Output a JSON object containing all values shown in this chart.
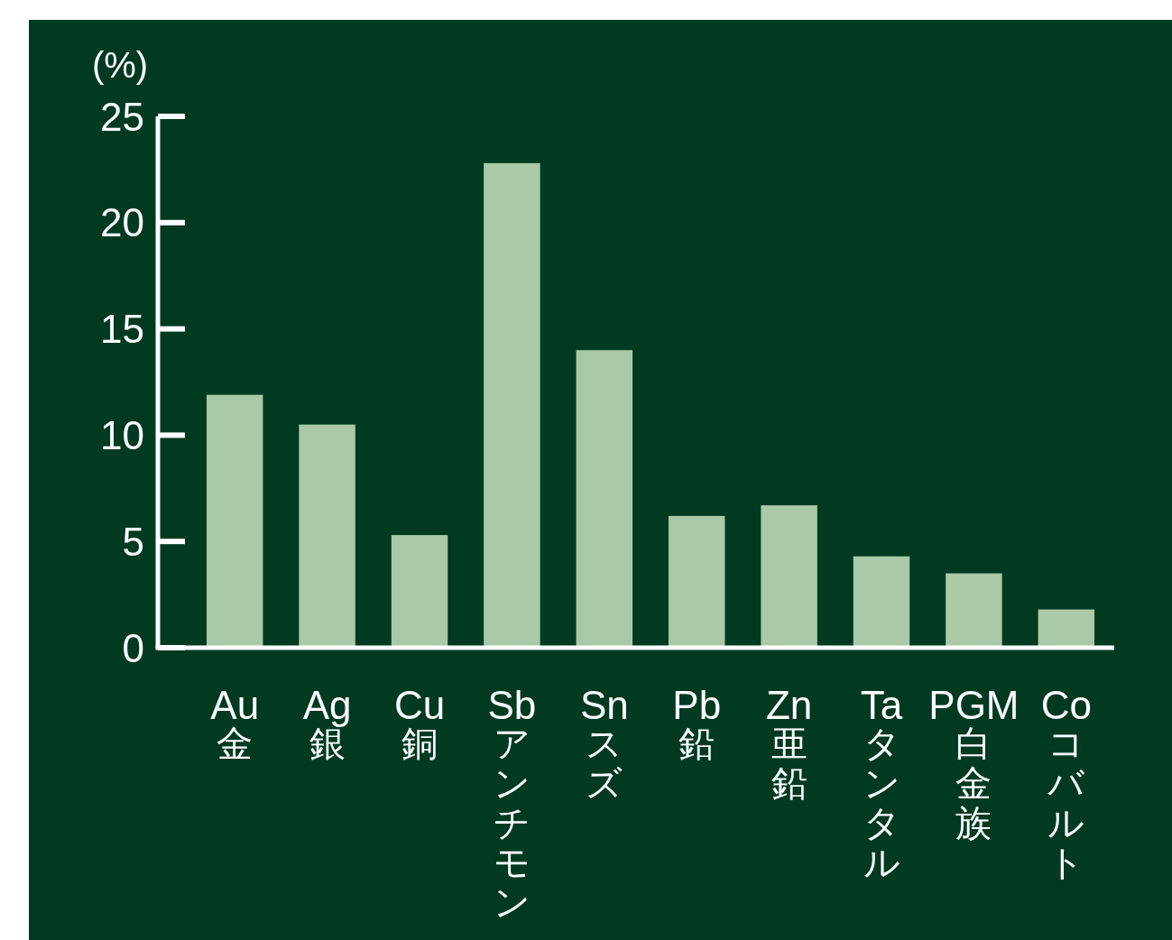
{
  "chart_data": {
    "type": "bar",
    "ylabel": "(%)",
    "categories": [
      "Au\n金",
      "Ag\n銀",
      "Cu\n銅",
      "Sb\nアンチモン",
      "Sn\nスズ",
      "Pb\n鉛",
      "Zn\n亜鉛",
      "Ta\nタンタル",
      "PGM\n白金族",
      "Co\nコバルト"
    ],
    "values": [
      11.9,
      10.5,
      5.3,
      22.8,
      14.0,
      6.2,
      6.7,
      4.3,
      3.5,
      1.8
    ],
    "color": "#a9c9a8",
    "ylim": [
      0,
      25
    ],
    "yticks": [
      0,
      5,
      10,
      15,
      20,
      25
    ]
  }
}
